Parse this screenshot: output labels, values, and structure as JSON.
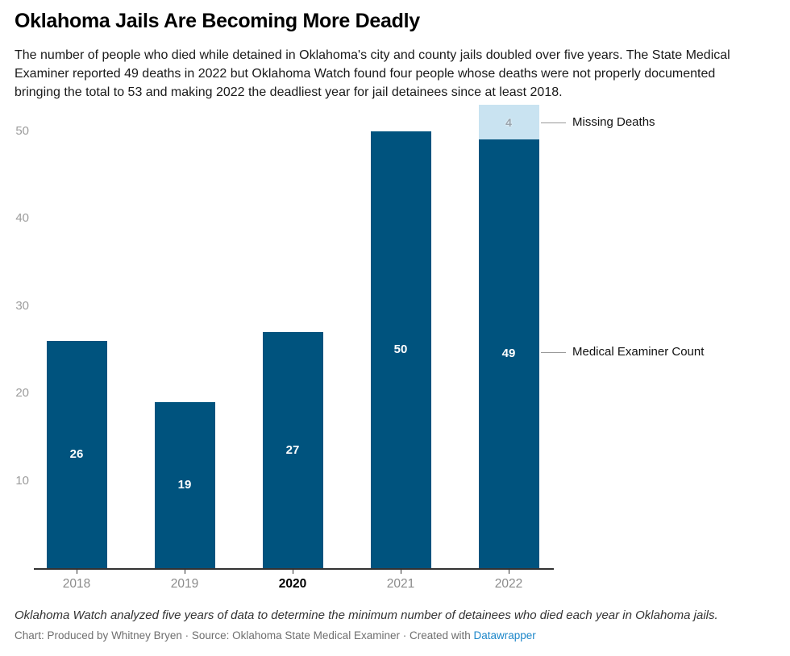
{
  "header": {
    "title": "Oklahoma Jails Are Becoming More Deadly",
    "description_lines": [
      "The number of people who died while detained in Oklahoma's city and county jails doubled over five years. The State Medical",
      "Examiner reported 49 deaths in 2022 but Oklahoma Watch found four people whose deaths were not properly documented",
      "bringing the total to 53 and making 2022 the deadliest year for jail detainees since at least 2018."
    ]
  },
  "chart_data": {
    "type": "bar",
    "stacked": true,
    "title": "Oklahoma Jails Are Becoming More Deadly",
    "categories": [
      "2018",
      "2019",
      "2020",
      "2021",
      "2022"
    ],
    "series": [
      {
        "name": "Medical Examiner Count",
        "values": [
          26,
          19,
          27,
          50,
          49
        ],
        "color": "#00537e",
        "label_color": "#ffffff"
      },
      {
        "name": "Missing Deaths",
        "values": [
          0,
          0,
          0,
          0,
          4
        ],
        "color": "#c9e3f1",
        "label_color": "#9aa4ad"
      }
    ],
    "totals": [
      26,
      19,
      27,
      50,
      53
    ],
    "ylim": [
      0,
      53
    ],
    "yticks": [
      10,
      20,
      30,
      40,
      50
    ],
    "grid": false,
    "legend_position": "none",
    "emphasized_category": "2020",
    "annotations": [
      {
        "label": "Missing Deaths",
        "target_value": 51
      },
      {
        "label": "Medical Examiner Count",
        "target_value": 24.7
      }
    ]
  },
  "footer": {
    "note": "Oklahoma Watch analyzed five years of data to determine the minimum number of detainees who died each year in Oklahoma jails.",
    "byline_prefix": "Chart: Produced by Whitney Bryen · Source: Oklahoma State Medical Examiner · Created with ",
    "byline_link": "Datawrapper"
  },
  "colors": {
    "bar_dark": "#00537e",
    "bar_light": "#c9e3f1",
    "link_blue": "#1d87c9",
    "axis": "#333333",
    "tick_label_gray": "#9c9c9c"
  }
}
